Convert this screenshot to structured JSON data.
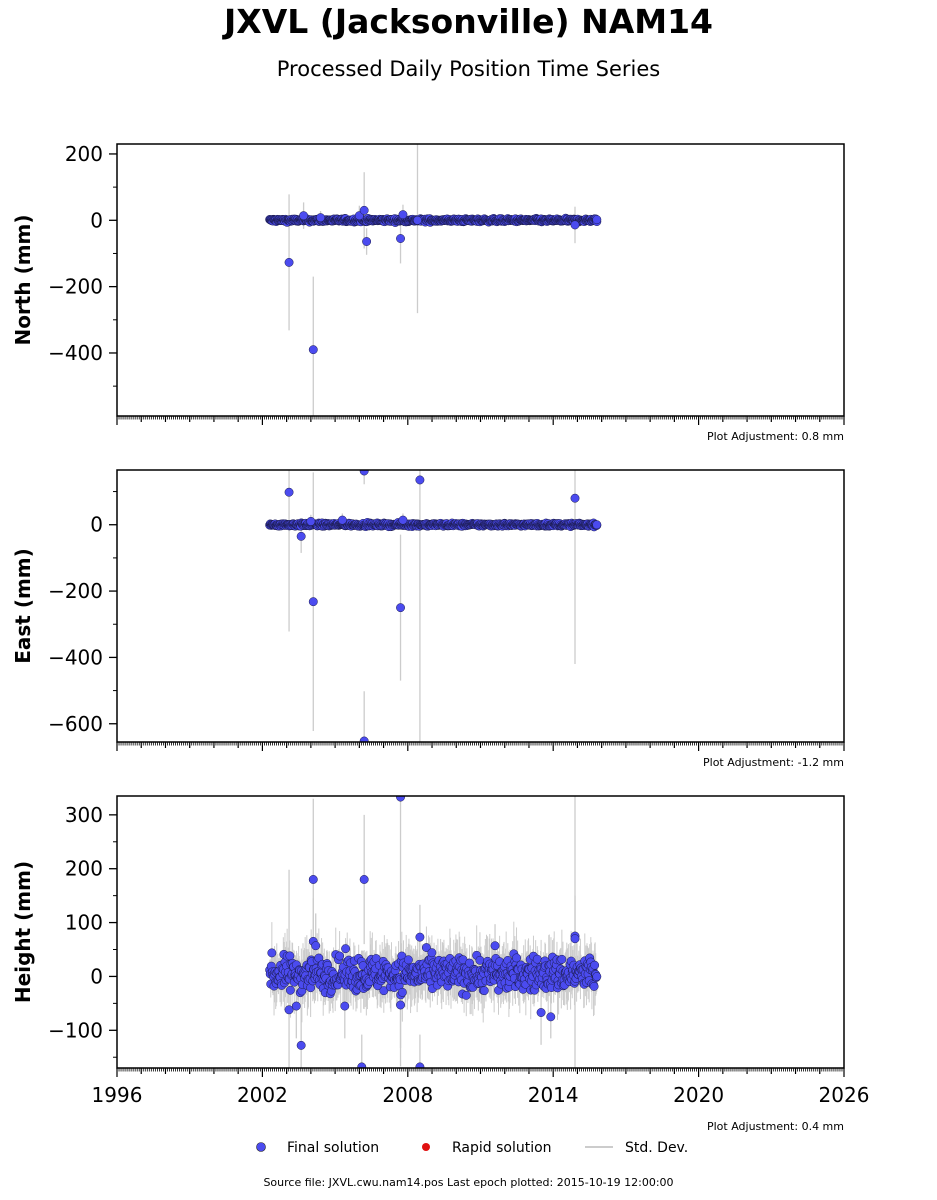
{
  "header": {
    "title": "JXVL (Jacksonville) NAM14",
    "subtitle": "Processed Daily Position Time Series"
  },
  "legend": {
    "final": "Final solution",
    "rapid": "Rapid solution",
    "std": "Std. Dev."
  },
  "footer": {
    "source": "Source file: JXVL.cwu.nam14.pos  Last epoch plotted: 2015-10-19 12:00:00"
  },
  "colors": {
    "final": "#4b4bef",
    "rapid": "#e01010",
    "std": "#cccccc"
  },
  "chart_data": [
    {
      "type": "scatter",
      "ylabel": "North (mm)",
      "adjustment": "Plot Adjustment: 0.8 mm",
      "xlim": [
        1996,
        2026
      ],
      "ylim": [
        -590,
        230
      ],
      "yticks": [
        200,
        0,
        -200,
        -400
      ],
      "ytick_labels": [
        "200",
        "0",
        "−200",
        "−400"
      ],
      "series": [
        {
          "name": "Final solution",
          "band": {
            "x_start": 2002.3,
            "x_end": 2015.8,
            "center": 0,
            "spread": 8
          },
          "outliers": [
            {
              "x": 2003.1,
              "y": -127,
              "err": 205
            },
            {
              "x": 2003.7,
              "y": 14,
              "err": 40
            },
            {
              "x": 2004.1,
              "y": -390,
              "err": 220
            },
            {
              "x": 2004.4,
              "y": 8,
              "err": 20
            },
            {
              "x": 2006.0,
              "y": 14,
              "err": 30
            },
            {
              "x": 2006.2,
              "y": 30,
              "err": 115
            },
            {
              "x": 2006.3,
              "y": -64,
              "err": 40
            },
            {
              "x": 2007.7,
              "y": -55,
              "err": 75
            },
            {
              "x": 2007.8,
              "y": 17,
              "err": 30
            },
            {
              "x": 2008.4,
              "y": 0,
              "err": 280
            },
            {
              "x": 2014.9,
              "y": -14,
              "err": 55
            },
            {
              "x": 2015.8,
              "y": 2,
              "err": 10
            }
          ]
        }
      ]
    },
    {
      "type": "scatter",
      "ylabel": "East (mm)",
      "adjustment": "Plot Adjustment: -1.2 mm",
      "xlim": [
        1996,
        2026
      ],
      "ylim": [
        -655,
        165
      ],
      "yticks": [
        0,
        -200,
        -400,
        -600
      ],
      "ytick_labels": [
        "0",
        "−200",
        "−400",
        "−600"
      ],
      "series": [
        {
          "name": "Final solution",
          "band": {
            "x_start": 2002.3,
            "x_end": 2015.8,
            "center": 0,
            "spread": 8
          },
          "outliers": [
            {
              "x": 2003.1,
              "y": 98,
              "err": 420
            },
            {
              "x": 2003.6,
              "y": -35,
              "err": 50
            },
            {
              "x": 2004.1,
              "y": -232,
              "err": 390
            },
            {
              "x": 2004.0,
              "y": 10,
              "err": 20
            },
            {
              "x": 2005.3,
              "y": 14,
              "err": 20
            },
            {
              "x": 2006.2,
              "y": 162,
              "err": 40
            },
            {
              "x": 2006.2,
              "y": -652,
              "err": 150
            },
            {
              "x": 2007.7,
              "y": -250,
              "err": 220
            },
            {
              "x": 2007.8,
              "y": 14,
              "err": 20
            },
            {
              "x": 2008.5,
              "y": 135,
              "err": 800
            },
            {
              "x": 2014.9,
              "y": 80,
              "err": 500
            },
            {
              "x": 2015.8,
              "y": 0,
              "err": 10
            }
          ]
        }
      ]
    },
    {
      "type": "scatter",
      "ylabel": "Height (mm)",
      "adjustment": "Plot Adjustment: 0.4 mm",
      "xlim": [
        1996,
        2026
      ],
      "ylim": [
        -170,
        335
      ],
      "yticks": [
        300,
        200,
        100,
        0,
        -100
      ],
      "ytick_labels": [
        "300",
        "200",
        "100",
        "0",
        "−100"
      ],
      "xticks": [
        1996,
        2002,
        2008,
        2014,
        2020,
        2026
      ],
      "xtick_labels": [
        "1996",
        "2002",
        "2008",
        "2014",
        "2020",
        "2026"
      ],
      "series": [
        {
          "name": "Final solution",
          "band": {
            "x_start": 2002.3,
            "x_end": 2015.8,
            "center": 5,
            "spread": 55
          },
          "outliers": [
            {
              "x": 2003.1,
              "y": -62,
              "err": 260
            },
            {
              "x": 2003.4,
              "y": -55,
              "err": 60
            },
            {
              "x": 2003.6,
              "y": -128,
              "err": 70
            },
            {
              "x": 2004.1,
              "y": 180,
              "err": 150
            },
            {
              "x": 2004.1,
              "y": 65,
              "err": 80
            },
            {
              "x": 2004.2,
              "y": 57,
              "err": 60
            },
            {
              "x": 2005.4,
              "y": -55,
              "err": 60
            },
            {
              "x": 2006.2,
              "y": 180,
              "err": 120
            },
            {
              "x": 2006.1,
              "y": -168,
              "err": 60
            },
            {
              "x": 2007.7,
              "y": 333,
              "err": 500
            },
            {
              "x": 2007.7,
              "y": -53,
              "err": 80
            },
            {
              "x": 2008.5,
              "y": 73,
              "err": 60
            },
            {
              "x": 2008.5,
              "y": -168,
              "err": 60
            },
            {
              "x": 2011.6,
              "y": 57,
              "err": 40
            },
            {
              "x": 2013.5,
              "y": -67,
              "err": 60
            },
            {
              "x": 2013.9,
              "y": -75,
              "err": 40
            },
            {
              "x": 2014.9,
              "y": 75,
              "err": 400
            },
            {
              "x": 2014.9,
              "y": 70,
              "err": 80
            }
          ]
        }
      ]
    }
  ]
}
